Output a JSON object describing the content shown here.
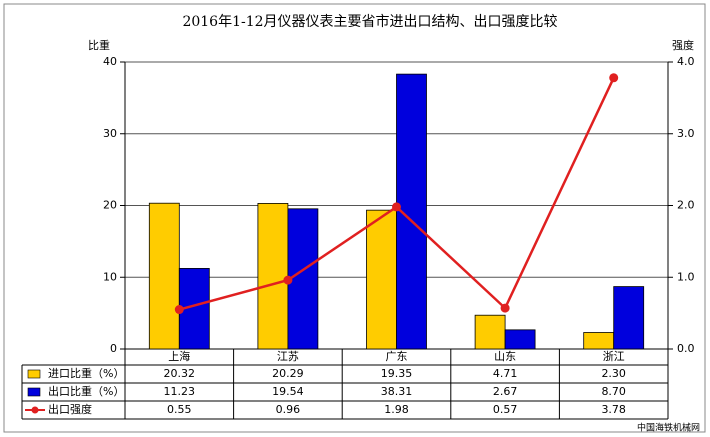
{
  "chart_data": {
    "type": "bar-line",
    "title": "2016年1-12月仪器仪表主要省市进出口结构、出口强度比较",
    "y_label": "比重",
    "y2_label": "强度",
    "categories": [
      "上海",
      "江苏",
      "广东",
      "山东",
      "浙江"
    ],
    "series": [
      {
        "name": "进口比重（%）",
        "color": "#ffcc00",
        "type": "bar",
        "values": [
          20.32,
          20.29,
          19.35,
          4.71,
          2.3
        ],
        "value_labels": [
          "20.32",
          "20.29",
          "19.35",
          "4.71",
          "2.30"
        ]
      },
      {
        "name": "出口比重（%）",
        "color": "#0000dd",
        "type": "bar",
        "values": [
          11.23,
          19.54,
          38.31,
          2.67,
          8.7
        ],
        "value_labels": [
          "11.23",
          "19.54",
          "38.31",
          "2.67",
          "8.70"
        ]
      },
      {
        "name": "出口强度",
        "color": "#e02020",
        "type": "line",
        "axis": "y2",
        "values": [
          0.55,
          0.96,
          1.98,
          0.57,
          3.78
        ],
        "value_labels": [
          "0.55",
          "0.96",
          "1.98",
          "0.57",
          "3.78"
        ]
      }
    ],
    "ylim": [
      0,
      40
    ],
    "yticks": [
      0,
      10,
      20,
      30,
      40
    ],
    "y2lim": [
      0,
      4
    ],
    "y2ticks": [
      {
        "value": 0,
        "label": "0.0"
      },
      {
        "value": 1,
        "label": "1.0"
      },
      {
        "value": 2,
        "label": "2.0"
      },
      {
        "value": 3,
        "label": "3.0"
      },
      {
        "value": 4,
        "label": "4.0"
      }
    ],
    "grid": true,
    "watermark": "中国海铁机械网"
  }
}
